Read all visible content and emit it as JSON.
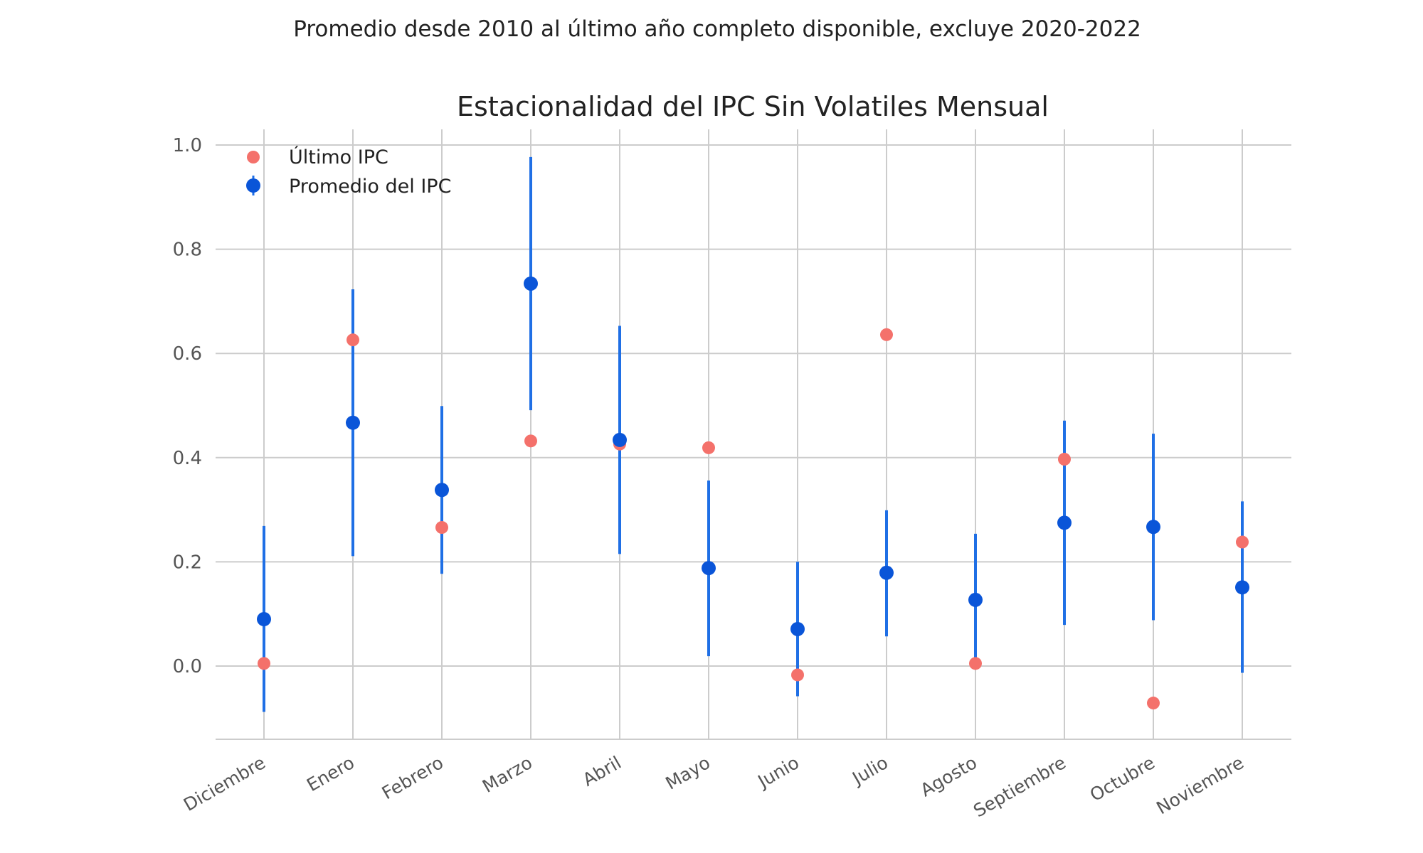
{
  "chart_data": {
    "type": "scatter",
    "suptitle": "Promedio desde 2010 al último año completo disponible, excluye 2020-2022",
    "title": "Estacionalidad del IPC Sin Volatiles Mensual",
    "xlabel": "",
    "ylabel": "",
    "categories": [
      "Diciembre",
      "Enero",
      "Febrero",
      "Marzo",
      "Abril",
      "Mayo",
      "Junio",
      "Julio",
      "Agosto",
      "Septiembre",
      "Octubre",
      "Noviembre"
    ],
    "ylim": [
      -0.14,
      1.03
    ],
    "yticks": [
      0.0,
      0.2,
      0.4,
      0.6,
      0.8,
      1.0
    ],
    "ytick_labels": [
      "0.0",
      "0.2",
      "0.4",
      "0.6",
      "0.8",
      "1.0"
    ],
    "grid": true,
    "legend_position": "top-left",
    "series": [
      {
        "name": "Último IPC",
        "color": "#f4716b",
        "values": [
          0.005,
          0.626,
          0.266,
          0.432,
          0.426,
          0.419,
          -0.017,
          0.636,
          0.005,
          0.397,
          -0.071,
          0.238
        ]
      },
      {
        "name": "Promedio del IPC",
        "color": "#0a55d8",
        "errorbar_color": "#1f6fe5",
        "values": [
          0.09,
          0.467,
          0.338,
          0.734,
          0.434,
          0.188,
          0.071,
          0.179,
          0.127,
          0.275,
          0.267,
          0.151
        ],
        "error_low": [
          -0.088,
          0.211,
          0.177,
          0.491,
          0.215,
          0.019,
          -0.058,
          0.057,
          0.0,
          0.079,
          0.088,
          -0.013
        ],
        "error_high": [
          0.269,
          0.723,
          0.499,
          0.977,
          0.653,
          0.356,
          0.2,
          0.299,
          0.254,
          0.471,
          0.446,
          0.316
        ]
      }
    ]
  }
}
